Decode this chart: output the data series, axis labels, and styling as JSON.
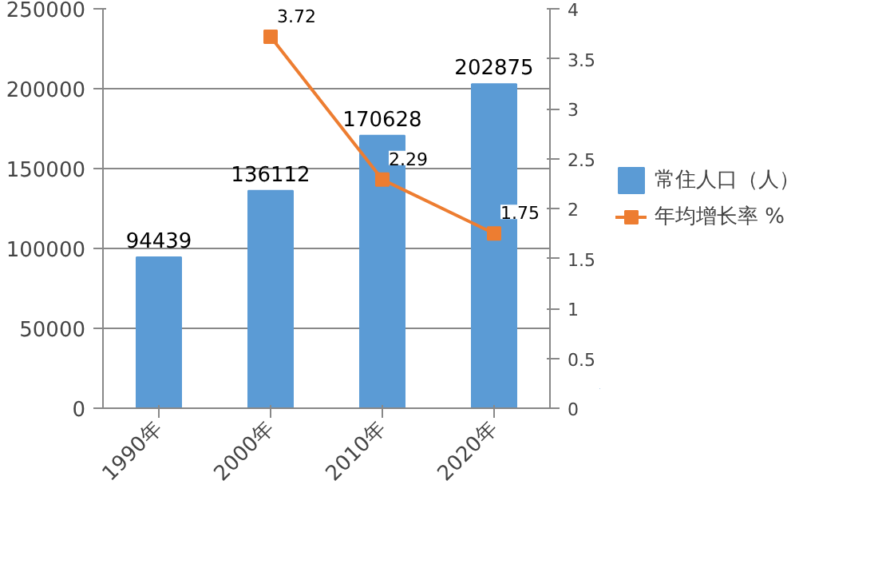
{
  "chart_data": {
    "type": "bar",
    "categories": [
      "1990年",
      "2000年",
      "2010年",
      "2020年"
    ],
    "series": [
      {
        "name": "常住人口（人）",
        "color": "#5b9bd5",
        "values": [
          94439,
          136112,
          170628,
          202875
        ]
      },
      {
        "name": "年均增长率 %",
        "type": "line",
        "axis": "y2",
        "color": "#ed7d31",
        "values": [
          null,
          3.72,
          2.29,
          1.75
        ],
        "marker": "square"
      }
    ],
    "ylim": [
      0,
      250000
    ],
    "yticks": [
      0,
      50000,
      100000,
      150000,
      200000,
      250000
    ],
    "y2lim": [
      0,
      4
    ],
    "y2ticks": [
      0,
      0.5,
      1,
      1.5,
      2,
      2.5,
      3,
      3.5,
      4
    ],
    "grid": "y",
    "legend": "right",
    "data_labels": true
  }
}
